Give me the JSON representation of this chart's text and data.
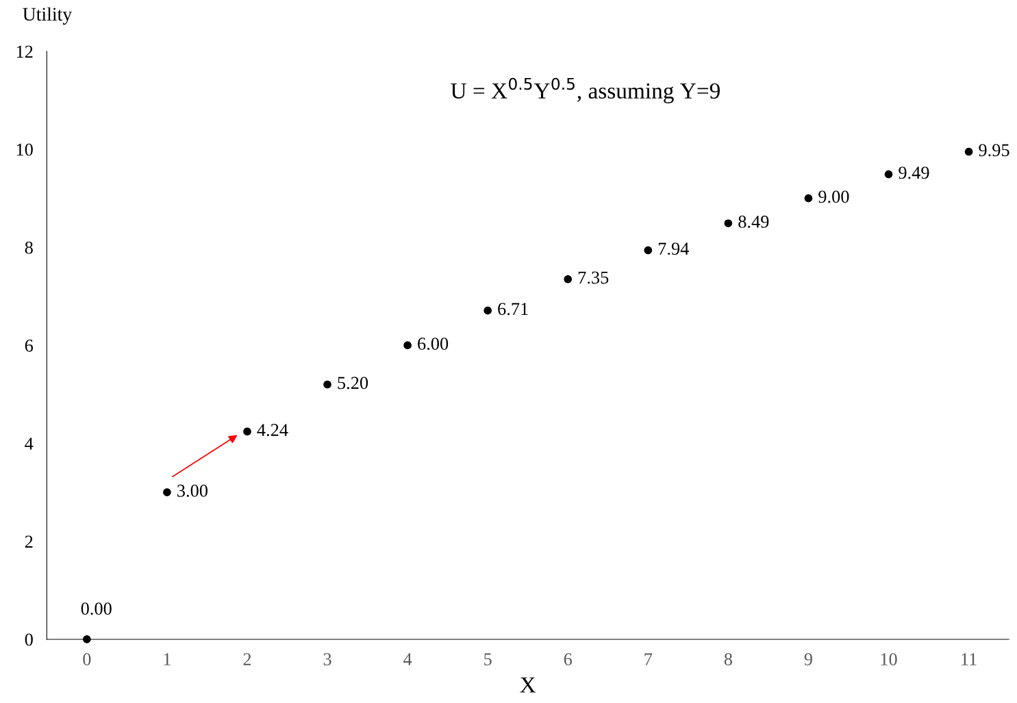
{
  "chart_data": {
    "type": "scatter",
    "title": "U = X$^{0.5}$Y$^{0.5}$, assuming Y=9",
    "xlabel": "X",
    "ylabel": "Utility",
    "categories": [
      "0",
      "1",
      "2",
      "3",
      "4",
      "5",
      "6",
      "7",
      "8",
      "9",
      "10",
      "11"
    ],
    "series": [
      {
        "color": "#000000",
        "values": [
          0,
          3,
          4.24,
          5.2,
          6,
          6.71,
          7.35,
          7.94,
          8.49,
          9,
          9.49,
          9.95
        ],
        "value_labels": [
          "0.00",
          "3.00",
          "4.24",
          "5.20",
          "6.00",
          "6.71",
          "7.35",
          "7.94",
          "8.49",
          "9.00",
          "9.49",
          "9.95"
        ]
      }
    ],
    "ylim": [
      0,
      12
    ],
    "yticks": [
      0,
      2,
      4,
      6,
      8,
      10,
      12
    ],
    "marker": "circle",
    "grid": false,
    "legend": false
  }
}
